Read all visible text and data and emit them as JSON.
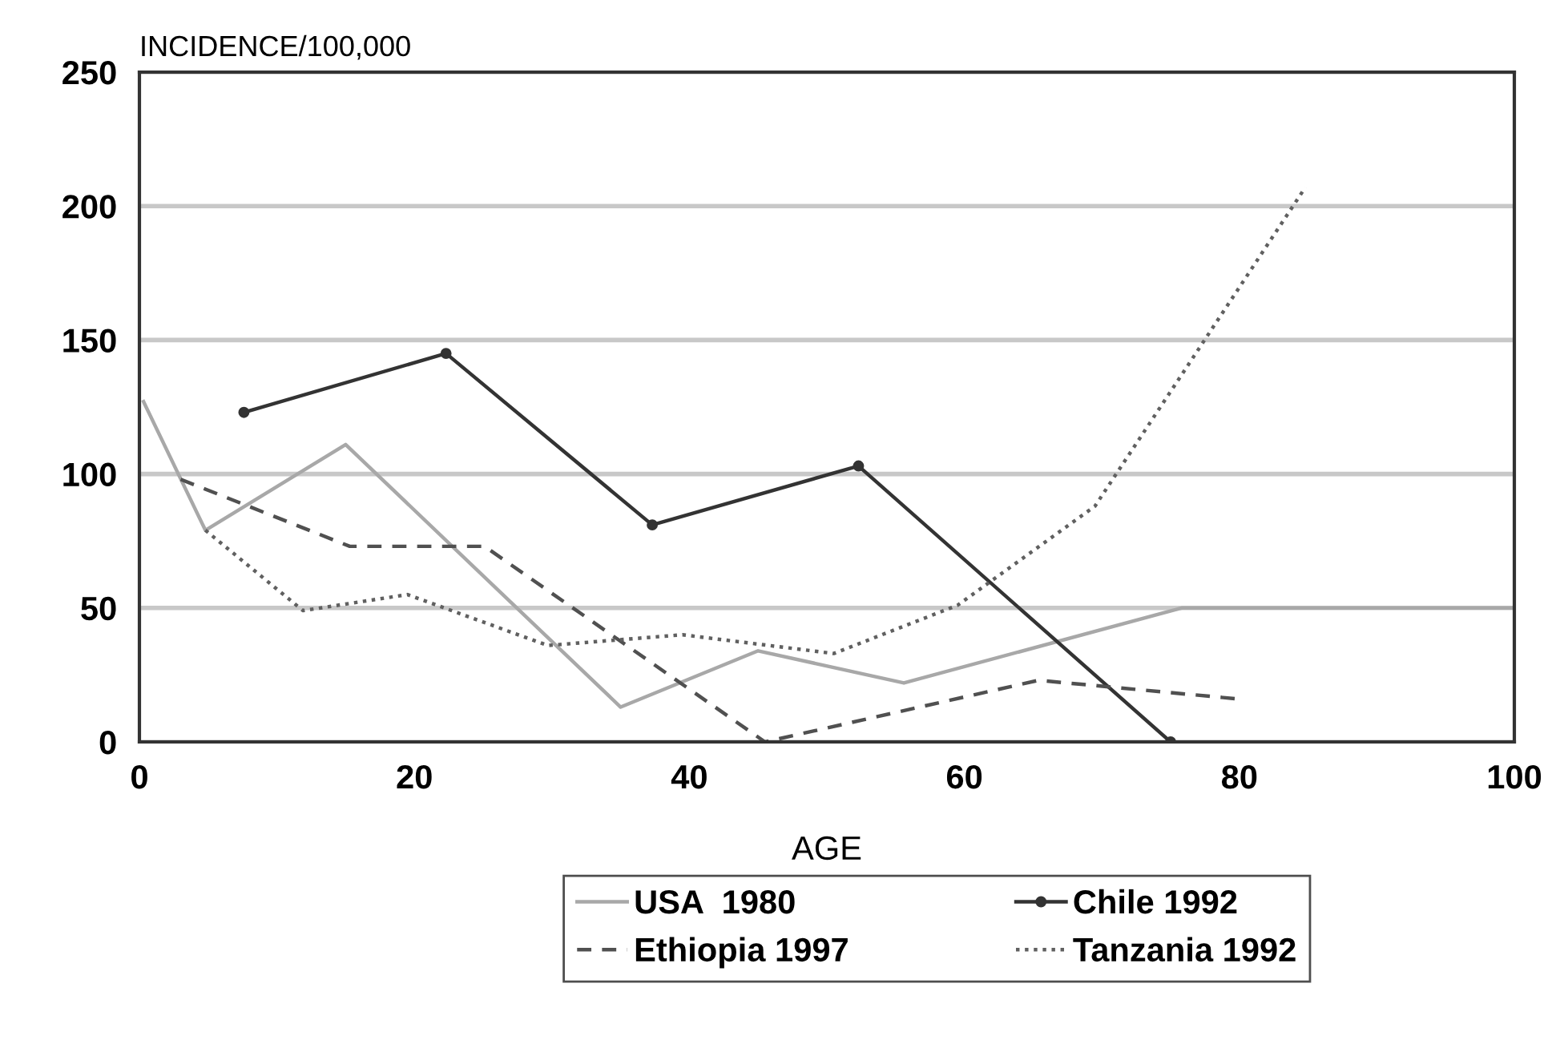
{
  "chart_data": {
    "type": "line",
    "xlabel": "AGE",
    "ylabel": "INCIDENCE/100,000",
    "xlim": [
      0,
      100
    ],
    "xticks": [
      0,
      20,
      40,
      60,
      80,
      100
    ],
    "ylim": [
      0,
      250
    ],
    "yticks": [
      0,
      50,
      100,
      150,
      200,
      250
    ],
    "grid": "y",
    "legend": "bottom",
    "series": [
      {
        "name": "USA  1980",
        "color": "#a8a8a8",
        "line_style": "solid",
        "x": [
          0.3,
          4.8,
          15,
          35,
          45,
          55.6,
          75.8,
          99.8
        ],
        "values": [
          127,
          79,
          111,
          13,
          34,
          22,
          50,
          50
        ]
      },
      {
        "name": "Chile 1992",
        "color": "#333333",
        "line_style": "solid",
        "marker": "circle",
        "x": [
          7.6,
          22.3,
          37.3,
          52.3,
          75
        ],
        "values": [
          123,
          145,
          81,
          103,
          0
        ]
      },
      {
        "name": "Ethiopia 1997",
        "color": "#505050",
        "line_style": "dashed",
        "x": [
          3,
          15.3,
          25.1,
          45.5,
          65.4,
          80
        ],
        "values": [
          98,
          73,
          73,
          0,
          23,
          16
        ]
      },
      {
        "name": "Tanzania 1992",
        "color": "#606060",
        "line_style": "dotted",
        "x": [
          4.8,
          11.9,
          19.5,
          29.7,
          39.5,
          50.5,
          59.5,
          69.5,
          84.8
        ],
        "values": [
          79,
          49,
          55,
          36,
          40,
          33,
          51,
          88,
          207
        ]
      }
    ]
  }
}
